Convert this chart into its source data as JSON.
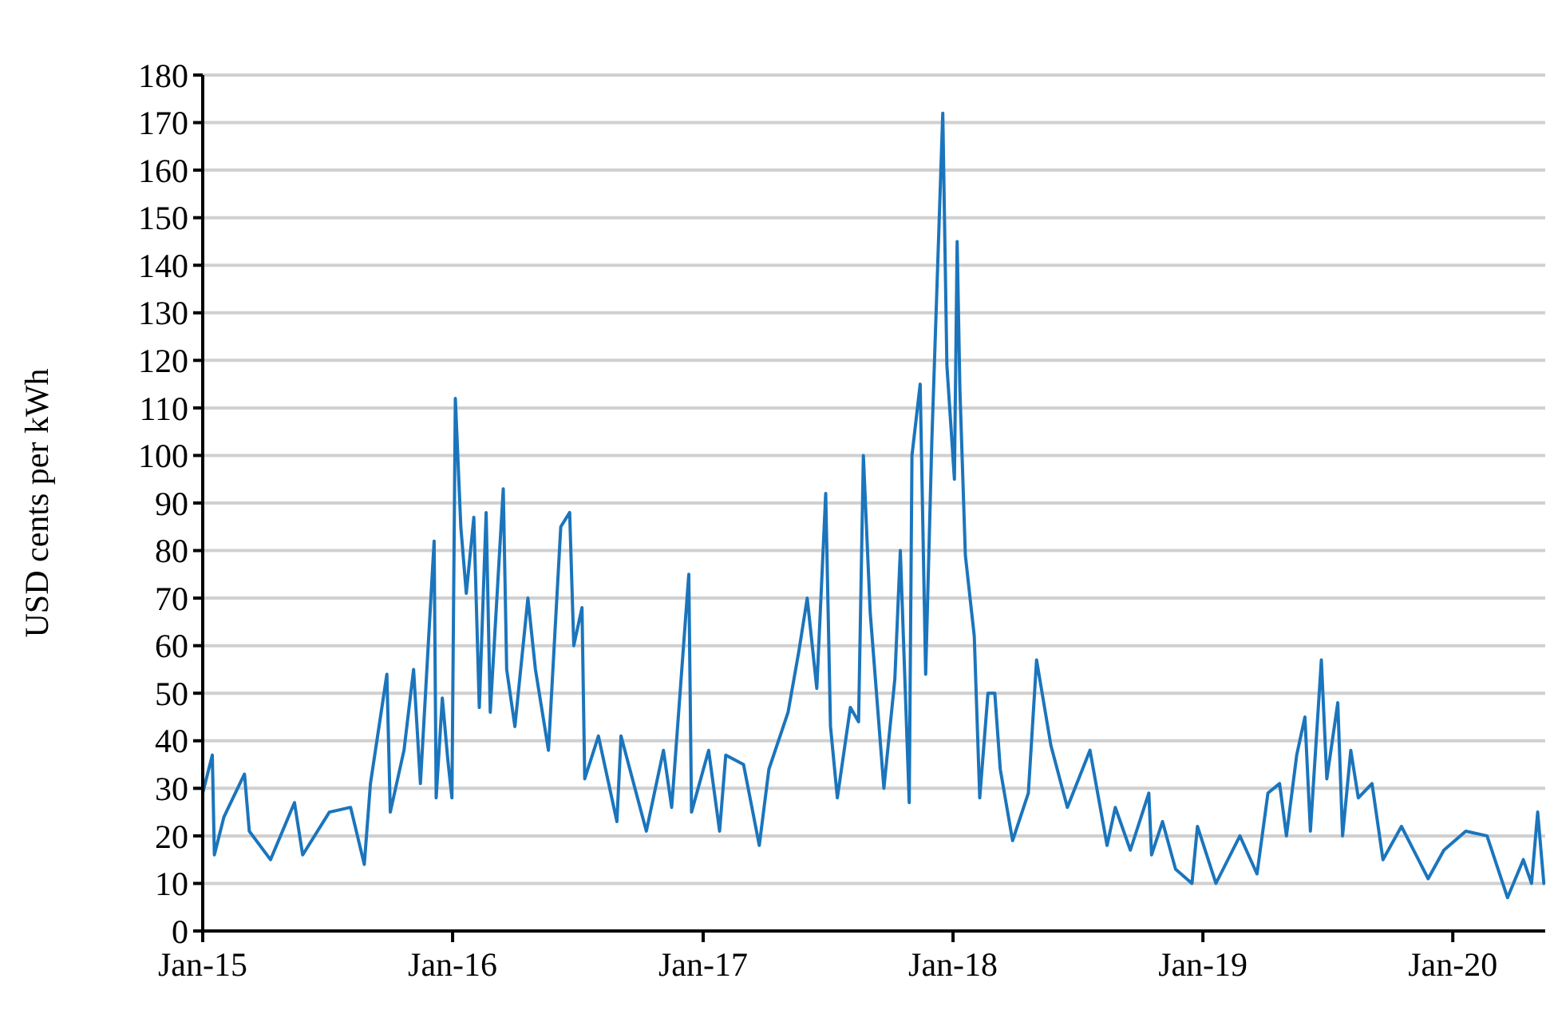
{
  "chart_data": {
    "type": "line",
    "ylabel": "USD cents per kWh",
    "x": [
      "2015-01-01",
      "2015-01-15",
      "2015-01-18",
      "2015-02-01",
      "2015-03-03",
      "2015-03-10",
      "2015-04-10",
      "2015-05-15",
      "2015-05-27",
      "2015-07-05",
      "2015-08-05",
      "2015-08-25",
      "2015-09-03",
      "2015-09-27",
      "2015-10-02",
      "2015-10-22",
      "2015-11-05",
      "2015-11-15",
      "2015-12-05",
      "2015-12-08",
      "2015-12-17",
      "2015-12-25",
      "2015-12-31",
      "2016-01-05",
      "2016-01-13",
      "2016-01-21",
      "2016-02-01",
      "2016-02-09",
      "2016-02-19",
      "2016-02-25",
      "2016-03-15",
      "2016-03-20",
      "2016-04-01",
      "2016-04-20",
      "2016-05-01",
      "2016-05-20",
      "2016-06-07",
      "2016-06-20",
      "2016-06-26",
      "2016-07-08",
      "2016-07-12",
      "2016-08-01",
      "2016-08-28",
      "2016-09-03",
      "2016-10-10",
      "2016-11-04",
      "2016-11-16",
      "2016-12-11",
      "2016-12-15",
      "2017-01-09",
      "2017-01-25",
      "2017-02-03",
      "2017-03-01",
      "2017-03-24",
      "2017-04-07",
      "2017-05-05",
      "2017-05-21",
      "2017-06-02",
      "2017-06-16",
      "2017-06-29",
      "2017-07-06",
      "2017-07-16",
      "2017-08-04",
      "2017-08-16",
      "2017-08-23",
      "2017-09-02",
      "2017-09-22",
      "2017-10-08",
      "2017-10-16",
      "2017-10-29",
      "2017-11-02",
      "2017-11-14",
      "2017-11-22",
      "2017-12-01",
      "2017-12-17",
      "2017-12-23",
      "2018-01-03",
      "2018-01-07",
      "2018-01-11",
      "2018-01-19",
      "2018-02-01",
      "2018-02-09",
      "2018-02-21",
      "2018-03-03",
      "2018-03-11",
      "2018-03-29",
      "2018-04-21",
      "2018-05-03",
      "2018-05-24",
      "2018-06-17",
      "2018-07-20",
      "2018-08-14",
      "2018-08-26",
      "2018-09-17",
      "2018-10-14",
      "2018-10-18",
      "2018-11-03",
      "2018-11-22",
      "2018-12-16",
      "2018-12-24",
      "2019-01-20",
      "2019-02-24",
      "2019-03-21",
      "2019-04-06",
      "2019-04-23",
      "2019-05-03",
      "2019-05-18",
      "2019-05-30",
      "2019-06-07",
      "2019-06-23",
      "2019-07-01",
      "2019-07-17",
      "2019-07-24",
      "2019-08-05",
      "2019-08-16",
      "2019-09-05",
      "2019-09-21",
      "2019-10-18",
      "2019-11-26",
      "2019-12-19",
      "2020-01-20",
      "2020-02-20",
      "2020-03-21",
      "2020-04-13",
      "2020-04-25",
      "2020-05-04",
      "2020-05-13"
    ],
    "series": [
      {
        "color": "#1b75bc",
        "values": [
          29,
          37,
          16,
          24,
          33,
          21,
          15,
          27,
          16,
          25,
          26,
          14,
          31,
          54,
          25,
          38,
          55,
          31,
          82,
          28,
          49,
          36,
          28,
          112,
          85,
          71,
          87,
          47,
          88,
          46,
          93,
          55,
          43,
          70,
          55,
          38,
          85,
          88,
          60,
          68,
          32,
          41,
          23,
          41,
          21,
          38,
          26,
          75,
          25,
          38,
          21,
          37,
          35,
          18,
          34,
          46,
          59,
          70,
          51,
          92,
          43,
          28,
          47,
          44,
          100,
          67,
          30,
          53,
          80,
          27,
          100,
          115,
          54,
          103,
          172,
          119,
          95,
          145,
          114,
          79,
          62,
          28,
          50,
          50,
          34,
          19,
          29,
          57,
          39,
          26,
          38,
          18,
          26,
          17,
          29,
          16,
          23,
          13,
          10,
          22,
          10,
          20,
          12,
          29,
          31,
          20,
          37,
          45,
          21,
          57,
          32,
          48,
          20,
          38,
          28,
          31,
          15,
          22,
          11,
          17,
          21,
          20,
          7,
          15,
          10,
          25,
          10
        ]
      }
    ],
    "xlim": [
      "2015-01-01",
      "2020-05-15"
    ],
    "xticks": [
      {
        "value": "2015-01-01",
        "label": "Jan-15"
      },
      {
        "value": "2016-01-01",
        "label": "Jan-16"
      },
      {
        "value": "2017-01-01",
        "label": "Jan-17"
      },
      {
        "value": "2018-01-01",
        "label": "Jan-18"
      },
      {
        "value": "2019-01-01",
        "label": "Jan-19"
      },
      {
        "value": "2020-01-01",
        "label": "Jan-20"
      }
    ],
    "ylim": [
      0,
      180
    ],
    "yticks": [
      0,
      10,
      20,
      30,
      40,
      50,
      60,
      70,
      80,
      90,
      100,
      110,
      120,
      130,
      140,
      150,
      160,
      170,
      180
    ],
    "grid": "y",
    "marker": "none",
    "line_style": "solid"
  }
}
